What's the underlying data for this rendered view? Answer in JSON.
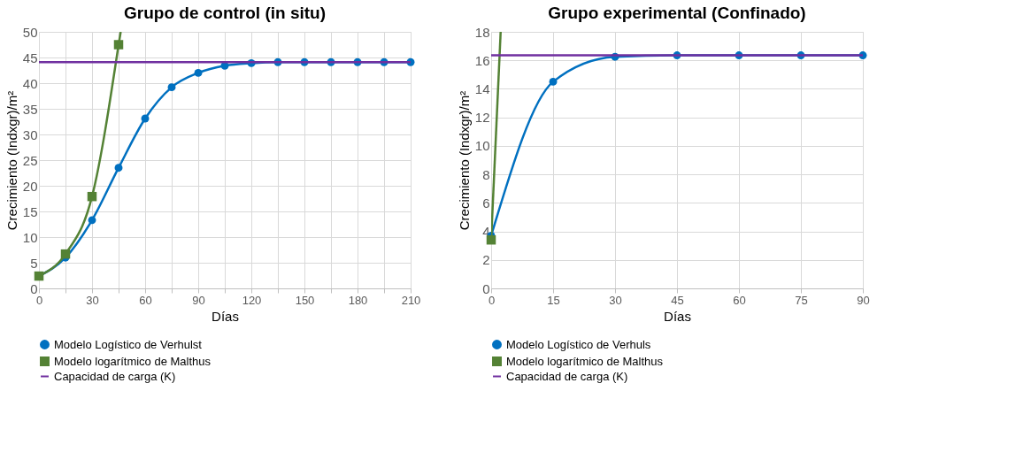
{
  "chart_data": [
    {
      "type": "line",
      "title": "Grupo de control (in situ)",
      "xlabel": "Días",
      "ylabel": "Crecimiento  (Indxgr)/m²",
      "xlim": [
        0,
        210
      ],
      "xticks": [
        0,
        {
          "value": 15,
          "label": null
        },
        30,
        {
          "value": 45,
          "label": null
        },
        60,
        {
          "value": 75,
          "label": null
        },
        90,
        {
          "value": 105,
          "label": null
        },
        120,
        {
          "value": 135,
          "label": null
        },
        150,
        {
          "value": 165,
          "label": null
        },
        180,
        {
          "value": 195,
          "label": null
        },
        210
      ],
      "ylim": [
        0,
        50
      ],
      "yticks": [
        0,
        5,
        10,
        15,
        20,
        25,
        30,
        35,
        40,
        45,
        50
      ],
      "grid": true,
      "legend": "bottom",
      "series": [
        {
          "name": "Modelo Logístico de Verhulst",
          "color": "#0070c0",
          "marker": "circle",
          "x": [
            0,
            15,
            30,
            45,
            60,
            75,
            90,
            105,
            120,
            135,
            150,
            165,
            180,
            195,
            210
          ],
          "values": [
            2.4,
            6,
            13.3,
            23.5,
            33.1,
            39.2,
            42,
            43.4,
            43.9,
            44.1,
            44.1,
            44.1,
            44.1,
            44.1,
            44.1
          ]
        },
        {
          "name": "Modelo logarítmico de Malthus",
          "color": "#548235",
          "marker": "square",
          "x": [
            0,
            15,
            30,
            45
          ],
          "values": [
            2.4,
            6.7,
            17.9,
            47.5
          ]
        },
        {
          "color": "#548235",
          "marker": "none",
          "x": [
            45,
            46.2
          ],
          "values": [
            47.5,
            50
          ]
        },
        {
          "name": "Capacidad de carga (K)",
          "color": "#7030a0",
          "marker": "none",
          "x": [
            0,
            210
          ],
          "values": [
            44.1,
            44.1
          ]
        }
      ]
    },
    {
      "type": "line",
      "title": "Grupo experimental (Confinado)",
      "xlabel": "Días",
      "ylabel": "Crecimiento  (Indxgr)/m²",
      "xlim": [
        0,
        90
      ],
      "xticks": [
        0,
        15,
        30,
        45,
        60,
        75,
        90
      ],
      "ylim": [
        0,
        18
      ],
      "yticks": [
        0,
        2,
        4,
        6,
        8,
        10,
        12,
        14,
        16,
        18
      ],
      "grid": true,
      "legend": "bottom",
      "series": [
        {
          "name": "Modelo Logístico de Verhuls",
          "color": "#0070c0",
          "marker": "circle",
          "x": [
            0,
            15,
            30,
            45,
            60,
            75,
            90
          ],
          "values": [
            3.7,
            14.5,
            16.25,
            16.35,
            16.35,
            16.35,
            16.35
          ]
        },
        {
          "name": "Modelo logarítmico de Malthus",
          "color": "#548235",
          "marker": "square",
          "x": [
            0
          ],
          "values": [
            3.4
          ]
        },
        {
          "color": "#548235",
          "marker": "none",
          "x": [
            0,
            2.3
          ],
          "values": [
            3.4,
            18
          ]
        },
        {
          "name": "Capacidad de carga (K)",
          "color": "#7030a0",
          "marker": "none",
          "x": [
            0,
            90
          ],
          "values": [
            16.35,
            16.35
          ]
        }
      ]
    }
  ]
}
